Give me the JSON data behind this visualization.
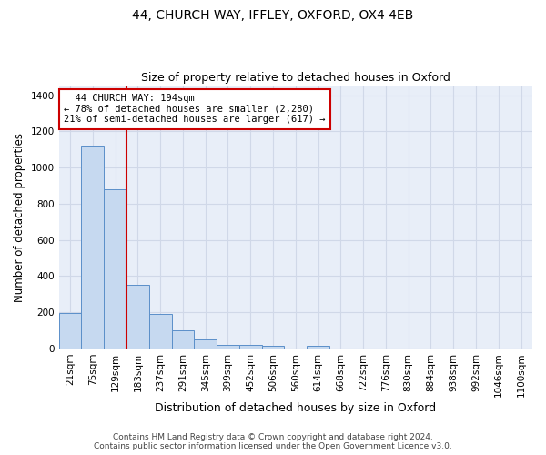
{
  "title": "44, CHURCH WAY, IFFLEY, OXFORD, OX4 4EB",
  "subtitle": "Size of property relative to detached houses in Oxford",
  "xlabel": "Distribution of detached houses by size in Oxford",
  "ylabel": "Number of detached properties",
  "footer_line1": "Contains HM Land Registry data © Crown copyright and database right 2024.",
  "footer_line2": "Contains public sector information licensed under the Open Government Licence v3.0.",
  "bin_labels": [
    "21sqm",
    "75sqm",
    "129sqm",
    "183sqm",
    "237sqm",
    "291sqm",
    "345sqm",
    "399sqm",
    "452sqm",
    "506sqm",
    "560sqm",
    "614sqm",
    "668sqm",
    "722sqm",
    "776sqm",
    "830sqm",
    "884sqm",
    "938sqm",
    "992sqm",
    "1046sqm",
    "1100sqm"
  ],
  "bar_heights": [
    195,
    1120,
    880,
    350,
    190,
    98,
    52,
    22,
    22,
    17,
    0,
    17,
    0,
    0,
    0,
    0,
    0,
    0,
    0,
    0,
    0
  ],
  "bar_color": "#c6d9f0",
  "bar_edge_color": "#5b8fc9",
  "grid_color": "#d0d8e8",
  "background_color": "#e8eef8",
  "vline_color": "#cc0000",
  "vline_linewidth": 1.5,
  "annotation_text": "  44 CHURCH WAY: 194sqm\n← 78% of detached houses are smaller (2,280)\n21% of semi-detached houses are larger (617) →",
  "annotation_box_color": "white",
  "annotation_edge_color": "#cc0000",
  "ylim": [
    0,
    1450
  ],
  "yticks": [
    0,
    200,
    400,
    600,
    800,
    1000,
    1200,
    1400
  ],
  "title_fontsize": 10,
  "subtitle_fontsize": 9,
  "xlabel_fontsize": 9,
  "ylabel_fontsize": 8.5,
  "tick_fontsize": 7.5,
  "footer_fontsize": 6.5,
  "annotation_fontsize": 7.5
}
